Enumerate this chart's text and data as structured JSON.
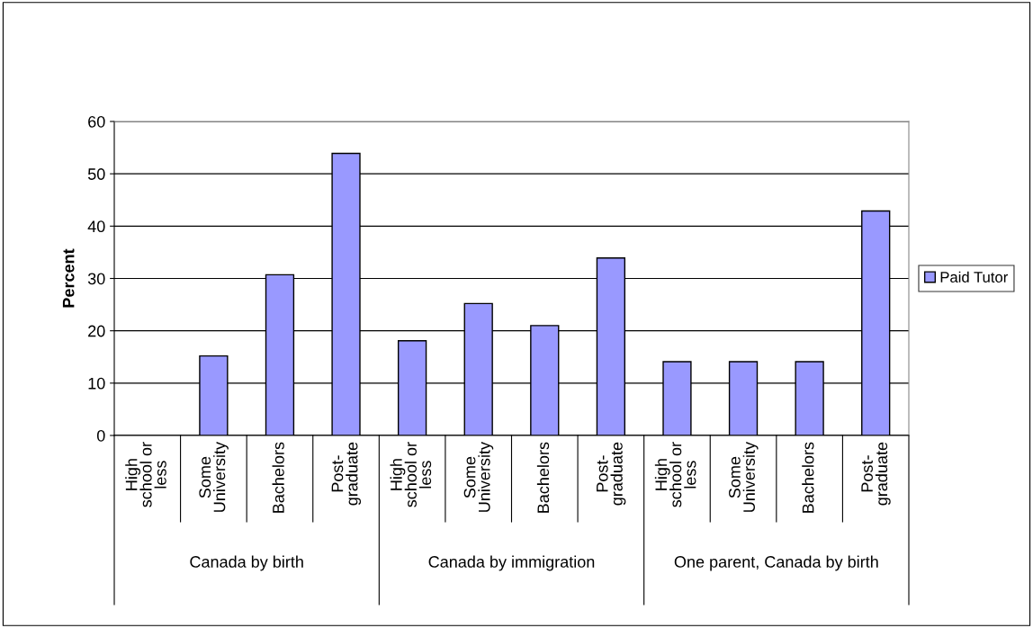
{
  "chart_data": {
    "type": "bar",
    "ylabel": "Percent",
    "categories": [
      "High\nschool or\nless",
      "Some\nUniversity",
      "Bachelors",
      "Post-\ngraduate",
      "High\nschool or\nless",
      "Some\nUniversity",
      "Bachelors",
      "Post-\ngraduate",
      "High\nschool or\nless",
      "Some\nUniversity",
      "Bachelors",
      "Post-\ngraduate"
    ],
    "series": [
      {
        "name": "Paid Tutor",
        "color": "#9999ff",
        "values": [
          null,
          15.2,
          30.7,
          53.9,
          18.1,
          25.2,
          21.0,
          33.9,
          14.1,
          14.1,
          14.1,
          42.9
        ]
      }
    ],
    "annotations": [
      "Canada by birth",
      "Canada by immigration",
      "One parent, Canada by birth"
    ],
    "ylim": [
      0,
      60
    ],
    "yticks": [
      0,
      10,
      20,
      30,
      40,
      50,
      60
    ],
    "grid": "y",
    "legend": "right"
  }
}
